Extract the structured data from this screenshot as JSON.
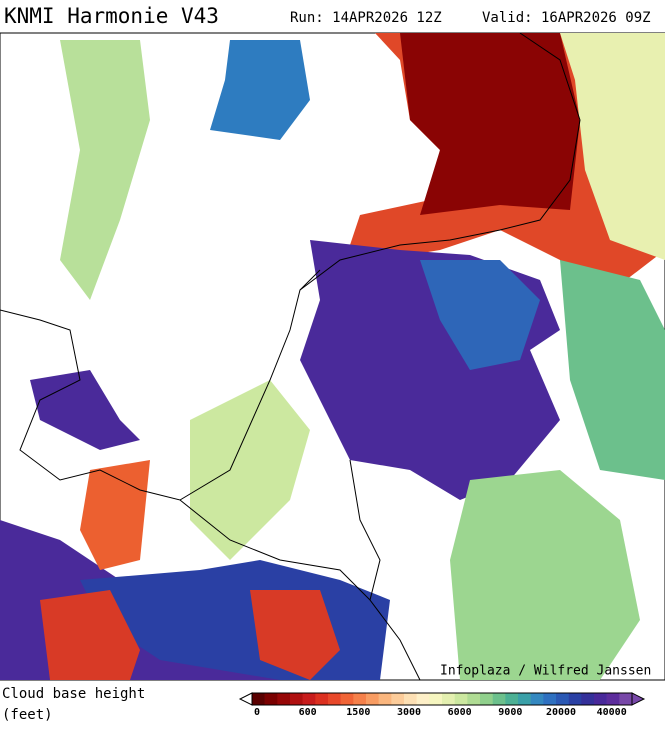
{
  "header": {
    "title": "KNMI Harmonie V43",
    "run": "Run: 14APR2026 12Z",
    "valid": "Valid: 16APR2026 09Z"
  },
  "map": {
    "credit": "Infoplaza / Wilfred Janssen"
  },
  "legend": {
    "title": "Cloud base height",
    "unit": "(feet)",
    "colors": [
      "#5a0000",
      "#7a0000",
      "#960606",
      "#b01010",
      "#c81c1c",
      "#dc3020",
      "#e8482a",
      "#f06436",
      "#f5804a",
      "#f89c62",
      "#fab67e",
      "#fccc9a",
      "#fde0b4",
      "#fef0c8",
      "#f6f6c0",
      "#e4f0b0",
      "#cce8a0",
      "#b0dc94",
      "#90d08c",
      "#6cc08c",
      "#4cb094",
      "#3aa0a8",
      "#3488c0",
      "#2e70c0",
      "#2a58b4",
      "#2a40a4",
      "#34309a",
      "#48289a",
      "#5c2c9c",
      "#7848a8"
    ],
    "ticks": [
      0,
      600,
      1500,
      3000,
      6000,
      9000,
      20000,
      40000
    ]
  }
}
